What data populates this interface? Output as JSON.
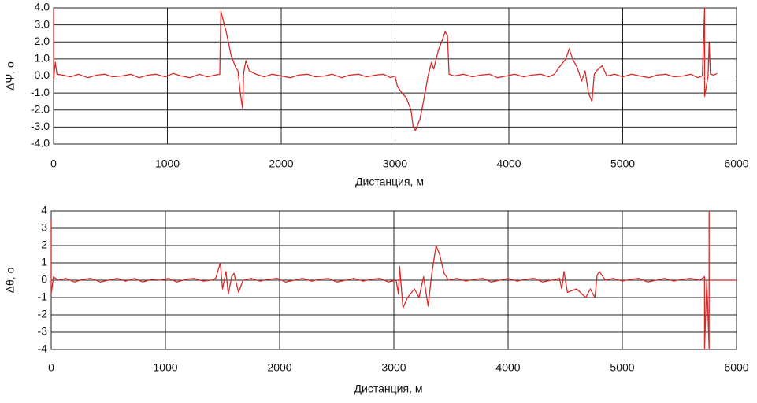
{
  "chart_data": [
    {
      "type": "line",
      "ylabel": "ΔΨ, o",
      "xlabel": "Дистанция, м",
      "xlim": [
        0,
        6000
      ],
      "ylim": [
        -4,
        4
      ],
      "xticks": [
        0,
        1000,
        2000,
        3000,
        4000,
        5000,
        6000
      ],
      "yticks": [
        {
          "value": -4,
          "label": "-4.0"
        },
        {
          "value": -3,
          "label": "-3.0"
        },
        {
          "value": -2,
          "label": "-2.0"
        },
        {
          "value": -1,
          "label": "-1.0"
        },
        {
          "value": 0,
          "label": "0.0"
        },
        {
          "value": 1,
          "label": "1.0"
        },
        {
          "value": 2,
          "label": "2.0"
        },
        {
          "value": 3,
          "label": "3.0"
        },
        {
          "value": 4,
          "label": "4.0"
        }
      ],
      "grid": true,
      "x": [
        0,
        0,
        15,
        30,
        80,
        150,
        220,
        300,
        380,
        450,
        520,
        600,
        680,
        750,
        830,
        900,
        980,
        1050,
        1120,
        1200,
        1280,
        1350,
        1420,
        1460,
        1470,
        1500,
        1520,
        1560,
        1600,
        1620,
        1640,
        1660,
        1670,
        1690,
        1720,
        1780,
        1850,
        1920,
        2000,
        2080,
        2150,
        2230,
        2300,
        2380,
        2450,
        2530,
        2600,
        2680,
        2750,
        2830,
        2900,
        2960,
        3000,
        3020,
        3060,
        3100,
        3140,
        3160,
        3180,
        3220,
        3250,
        3290,
        3320,
        3340,
        3380,
        3420,
        3440,
        3460,
        3475,
        3520,
        3600,
        3680,
        3750,
        3830,
        3900,
        3980,
        4050,
        4130,
        4200,
        4280,
        4350,
        4400,
        4440,
        4500,
        4530,
        4560,
        4600,
        4640,
        4670,
        4700,
        4730,
        4750,
        4770,
        4820,
        4860,
        4930,
        5000,
        5080,
        5150,
        5230,
        5300,
        5380,
        5450,
        5530,
        5600,
        5660,
        5700,
        5720,
        5720,
        5730,
        5750,
        5760,
        5770,
        5800,
        5830
      ],
      "series": [
        {
          "color": "#d42a2a",
          "values": [
            4,
            -0.2,
            0.8,
            0.1,
            0.05,
            -0.05,
            0.1,
            -0.1,
            0.05,
            0.1,
            -0.05,
            0,
            0.1,
            -0.1,
            0.05,
            0.1,
            -0.05,
            0.15,
            0,
            -0.1,
            0.1,
            -0.05,
            0.05,
            0.1,
            3.8,
            3,
            2.5,
            1.2,
            0.5,
            0.3,
            -1,
            -1.9,
            0.2,
            0.9,
            0.3,
            0.1,
            -0.05,
            0.1,
            0,
            -0.1,
            0.05,
            0.1,
            -0.05,
            0,
            0.1,
            -0.1,
            0.05,
            0.1,
            -0.05,
            0.05,
            0.1,
            -0.1,
            0,
            -0.6,
            -1,
            -1.3,
            -2,
            -3,
            -3.2,
            -2.5,
            -1.5,
            0,
            0.8,
            0.4,
            1.5,
            2.2,
            2.6,
            2.4,
            0.1,
            0,
            0.1,
            -0.05,
            0.05,
            0.1,
            -0.1,
            0,
            0.1,
            -0.05,
            0.05,
            0.1,
            -0.05,
            0.1,
            0.5,
            1,
            1.6,
            1,
            0.5,
            -0.3,
            0.3,
            -1,
            -1.5,
            0.1,
            0.3,
            0.6,
            0,
            0.1,
            -0.05,
            0.1,
            0,
            -0.1,
            0.05,
            0.1,
            -0.05,
            0,
            0.1,
            -0.1,
            0,
            4,
            -1.2,
            -0.8,
            0,
            2,
            0.1,
            0.05,
            0.15
          ]
        }
      ]
    },
    {
      "type": "line",
      "ylabel": "Δθ, o",
      "xlabel": "Дистанция, м",
      "xlim": [
        0,
        6000
      ],
      "ylim": [
        -4,
        4
      ],
      "xticks": [
        0,
        1000,
        2000,
        3000,
        4000,
        5000,
        6000
      ],
      "yticks": [
        -4,
        -3,
        -2,
        -1,
        0,
        1,
        2,
        3,
        4
      ],
      "grid": true,
      "x": [
        0,
        0,
        20,
        60,
        130,
        200,
        280,
        350,
        430,
        500,
        580,
        650,
        730,
        800,
        880,
        950,
        1030,
        1100,
        1180,
        1250,
        1330,
        1400,
        1440,
        1480,
        1500,
        1530,
        1550,
        1580,
        1600,
        1640,
        1680,
        1750,
        1830,
        1900,
        1980,
        2050,
        2130,
        2200,
        2280,
        2350,
        2430,
        2500,
        2580,
        2650,
        2730,
        2800,
        2880,
        2950,
        3020,
        3040,
        3050,
        3080,
        3120,
        3180,
        3220,
        3260,
        3300,
        3330,
        3370,
        3400,
        3440,
        3480,
        3550,
        3630,
        3700,
        3780,
        3850,
        3930,
        4000,
        4080,
        4150,
        4230,
        4300,
        4380,
        4450,
        4470,
        4490,
        4520,
        4600,
        4680,
        4720,
        4760,
        4780,
        4800,
        4850,
        4920,
        5000,
        5070,
        5150,
        5220,
        5300,
        5370,
        5450,
        5520,
        5600,
        5680,
        5720,
        5720,
        5740,
        5760,
        5760,
        5760,
        6000
      ],
      "series": [
        {
          "color": "#d42a2a",
          "values": [
            3.5,
            -0.8,
            0.2,
            0,
            0.1,
            -0.1,
            0.05,
            0.1,
            -0.1,
            0,
            0.1,
            -0.05,
            0.1,
            -0.1,
            0.05,
            0,
            0.1,
            -0.1,
            0.05,
            0.1,
            -0.05,
            0,
            0.1,
            1,
            -0.5,
            0.5,
            -0.8,
            0.2,
            0.4,
            -0.7,
            0,
            0.1,
            -0.05,
            0.05,
            0.1,
            -0.1,
            0,
            0.1,
            -0.05,
            0.05,
            0.1,
            -0.1,
            0,
            0.1,
            -0.05,
            0.05,
            0.1,
            -0.1,
            0,
            -0.8,
            0.8,
            -1.6,
            -1,
            -0.5,
            -1,
            0.2,
            -1.5,
            0.3,
            2,
            1.5,
            0.4,
            0,
            0.1,
            -0.05,
            0.05,
            0.1,
            -0.1,
            0,
            0.1,
            -0.05,
            0.05,
            0.1,
            -0.1,
            0,
            0.1,
            -0.5,
            0.5,
            -0.7,
            -0.5,
            -1,
            -0.5,
            -1,
            0.3,
            0.5,
            0,
            0.1,
            -0.05,
            0.05,
            0.1,
            -0.1,
            0,
            0.1,
            -0.05,
            0.05,
            0.1,
            0,
            0.2,
            -4,
            0,
            -4,
            4,
            0,
            0
          ]
        }
      ]
    }
  ]
}
